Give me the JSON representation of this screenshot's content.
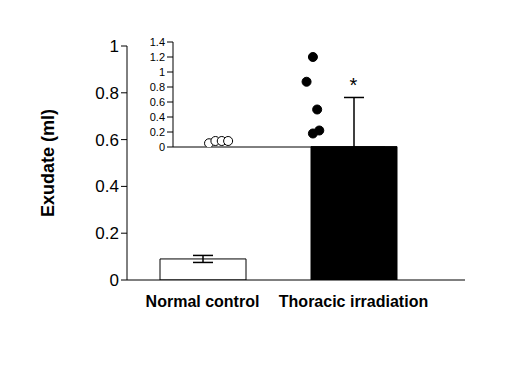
{
  "chart_data": [
    {
      "type": "bar",
      "y_label": "Exudate (ml)",
      "categories": [
        "Normal control",
        "Thoracic irradiation"
      ],
      "values": [
        0.09,
        0.57
      ],
      "errors": [
        0.015,
        0.21
      ],
      "colors": [
        "#ffffff",
        "#000000"
      ],
      "ylim": [
        0,
        1
      ],
      "yticks": [
        0,
        0.2,
        0.4,
        0.6,
        0.8,
        1
      ],
      "grid": false,
      "annotations": [
        {
          "text": "*",
          "category": "Thoracic irradiation"
        }
      ]
    },
    {
      "type": "scatter",
      "xlim": [
        0,
        10
      ],
      "ylim": [
        0,
        1.4
      ],
      "yticks": [
        0,
        0.2,
        0.4,
        0.6,
        0.8,
        1,
        1.2,
        1.4
      ],
      "tick_labels": "y",
      "grid": false,
      "series": [
        {
          "color": "#000000",
          "marker": "open_circle",
          "x": [
            1.7,
            2.0,
            2.3,
            2.6
          ],
          "values": [
            0.05,
            0.08,
            0.08,
            0.08
          ]
        },
        {
          "color": "#000000",
          "marker": "circle",
          "x": [
            6.6,
            6.3,
            6.8,
            6.9,
            6.6
          ],
          "values": [
            1.2,
            0.87,
            0.5,
            0.22,
            0.18
          ]
        }
      ]
    }
  ]
}
